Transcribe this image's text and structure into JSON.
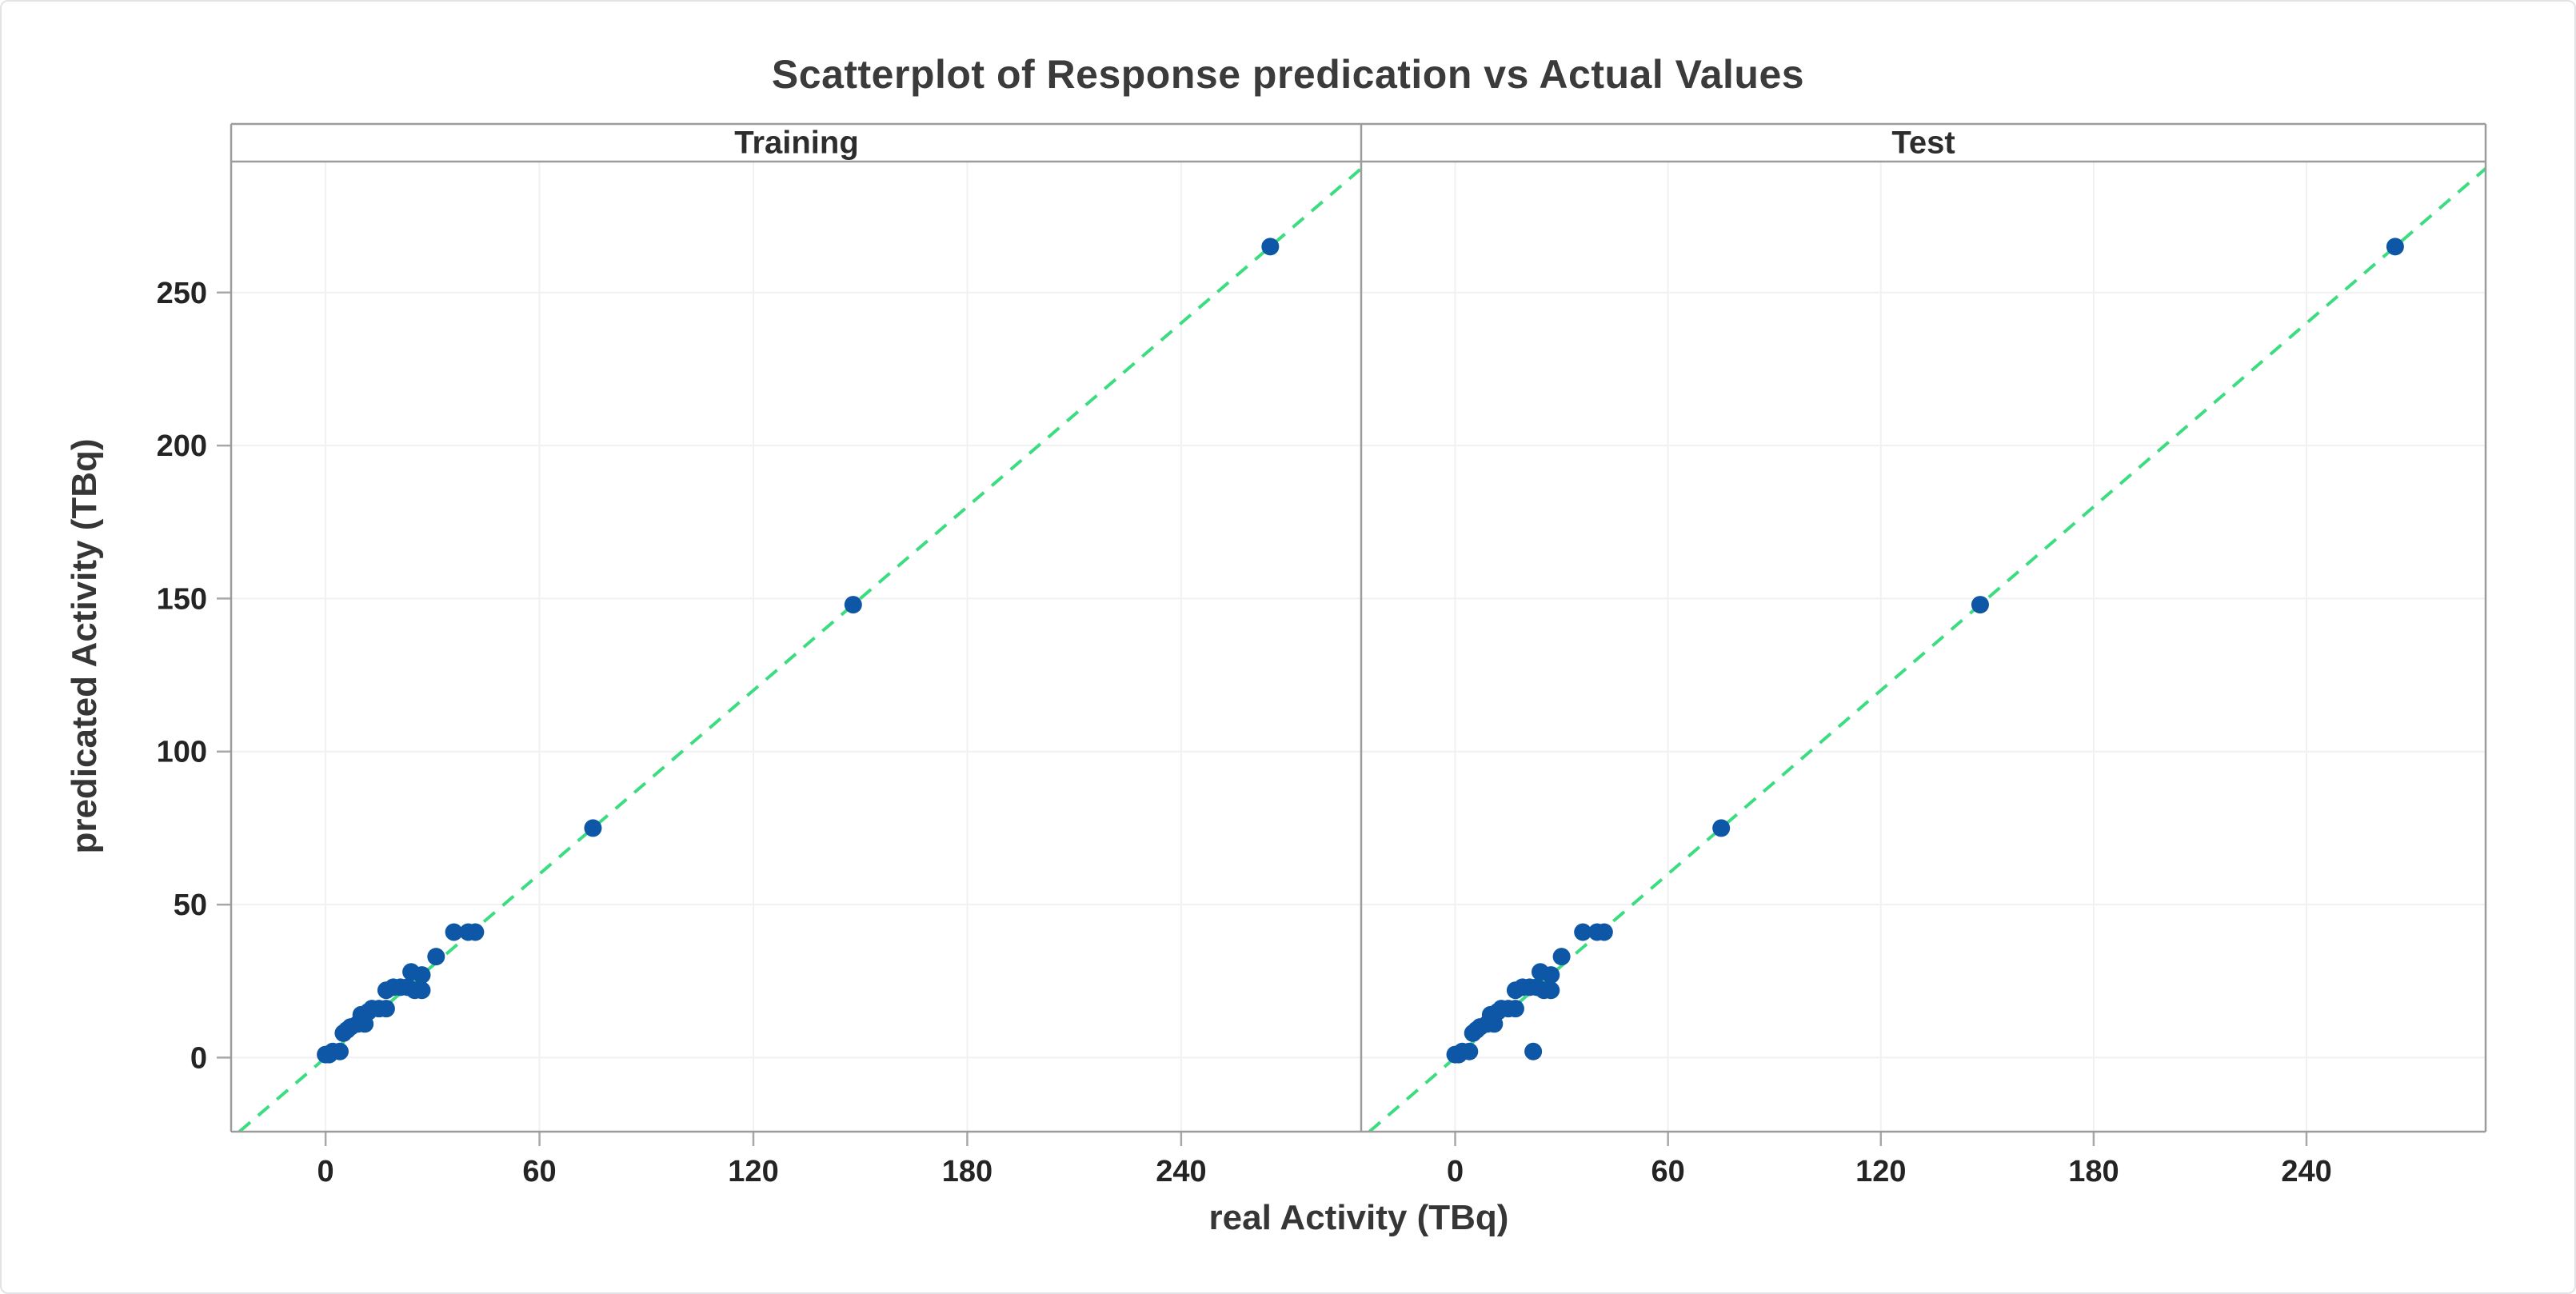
{
  "title": "Scatterplot of Response predication vs Actual Values",
  "chart_data": {
    "type": "scatter",
    "title": "Scatterplot of Response predication vs Actual Values",
    "xlabel": "real Activity (TBq)",
    "ylabel": "predicated Activity (TBq)",
    "x_ticks": [
      0,
      60,
      120,
      180,
      240
    ],
    "y_ticks": [
      0,
      50,
      100,
      150,
      200,
      250
    ],
    "x_range": [
      -26.5,
      290.5
    ],
    "y_range": [
      -24.2,
      292.8
    ],
    "grid": true,
    "legend": "none",
    "reference_line": {
      "type": "identity",
      "equation": "y = x",
      "style": "dashed",
      "color": "#3cdd80"
    },
    "point_color": "#0e56a6",
    "facets": [
      {
        "label": "Training",
        "points": [
          [
            0,
            1
          ],
          [
            1,
            1
          ],
          [
            2,
            2
          ],
          [
            4,
            2
          ],
          [
            5,
            8
          ],
          [
            6,
            9
          ],
          [
            7,
            10
          ],
          [
            9,
            11
          ],
          [
            11,
            11
          ],
          [
            10,
            14
          ],
          [
            12,
            15
          ],
          [
            13,
            16
          ],
          [
            15,
            16
          ],
          [
            17,
            16
          ],
          [
            17,
            22
          ],
          [
            19,
            23
          ],
          [
            21,
            23
          ],
          [
            23,
            23
          ],
          [
            25,
            22
          ],
          [
            27,
            22
          ],
          [
            24,
            28
          ],
          [
            27,
            27
          ],
          [
            31,
            33
          ],
          [
            36,
            41
          ],
          [
            40,
            41
          ],
          [
            42,
            41
          ],
          [
            75,
            75
          ],
          [
            148,
            148
          ],
          [
            265,
            265
          ]
        ]
      },
      {
        "label": "Test",
        "points": [
          [
            0,
            1
          ],
          [
            1,
            1
          ],
          [
            2,
            2
          ],
          [
            4,
            2
          ],
          [
            5,
            8
          ],
          [
            6,
            9
          ],
          [
            7,
            10
          ],
          [
            9,
            11
          ],
          [
            11,
            11
          ],
          [
            10,
            14
          ],
          [
            12,
            15
          ],
          [
            13,
            16
          ],
          [
            15,
            16
          ],
          [
            17,
            16
          ],
          [
            17,
            22
          ],
          [
            19,
            23
          ],
          [
            21,
            23
          ],
          [
            23,
            23
          ],
          [
            25,
            22
          ],
          [
            27,
            22
          ],
          [
            24,
            28
          ],
          [
            27,
            27
          ],
          [
            30,
            33
          ],
          [
            36,
            41
          ],
          [
            40,
            41
          ],
          [
            42,
            41
          ],
          [
            22,
            2
          ],
          [
            75,
            75
          ],
          [
            148,
            148
          ],
          [
            265,
            265
          ]
        ]
      }
    ]
  },
  "colors": {
    "background": "#ffffff",
    "frame_border": "#e2e3e6",
    "panel_border": "#9c9c9c",
    "grid": "#f1f1f1",
    "tick": "#a8a8a8",
    "tick_text": "#242424",
    "strip_text": "#2d2d2d",
    "axis_text": "#363636",
    "title_text": "#3b3b3b"
  }
}
